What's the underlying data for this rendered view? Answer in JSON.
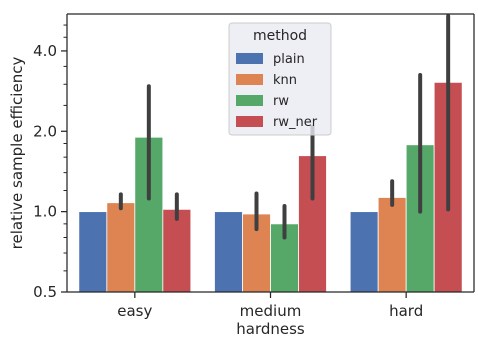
{
  "chart_data": {
    "type": "bar",
    "xlabel": "hardness",
    "ylabel": "relative sample efficiency",
    "y_scale": "log2",
    "ylim": [
      0.5,
      5.5
    ],
    "yticks": [
      {
        "value": 0.5,
        "label": "0.5"
      },
      {
        "value": 1.0,
        "label": "1.0"
      },
      {
        "value": 2.0,
        "label": "2.0"
      },
      {
        "value": 4.0,
        "label": "4.0"
      }
    ],
    "categories": [
      "easy",
      "medium",
      "hard"
    ],
    "legend": {
      "title": "method",
      "placement": "top-center"
    },
    "series": [
      {
        "name": "plain",
        "color": "#4c72b0",
        "values": [
          1.0,
          1.0,
          1.0
        ],
        "ci_low": [
          1.0,
          1.0,
          1.0
        ],
        "ci_high": [
          1.0,
          1.0,
          1.0
        ]
      },
      {
        "name": "knn",
        "color": "#dd8452",
        "values": [
          1.08,
          0.98,
          1.13
        ],
        "ci_low": [
          1.03,
          0.86,
          1.06
        ],
        "ci_high": [
          1.16,
          1.17,
          1.3
        ]
      },
      {
        "name": "rw",
        "color": "#55a868",
        "values": [
          1.9,
          0.9,
          1.78
        ],
        "ci_low": [
          1.12,
          0.8,
          1.0
        ],
        "ci_high": [
          2.95,
          1.05,
          3.25
        ]
      },
      {
        "name": "rw_ner",
        "color": "#c44e52",
        "values": [
          1.02,
          1.62,
          3.05
        ],
        "ci_low": [
          0.94,
          1.12,
          1.02
        ],
        "ci_high": [
          1.16,
          2.08,
          5.4
        ]
      }
    ]
  }
}
